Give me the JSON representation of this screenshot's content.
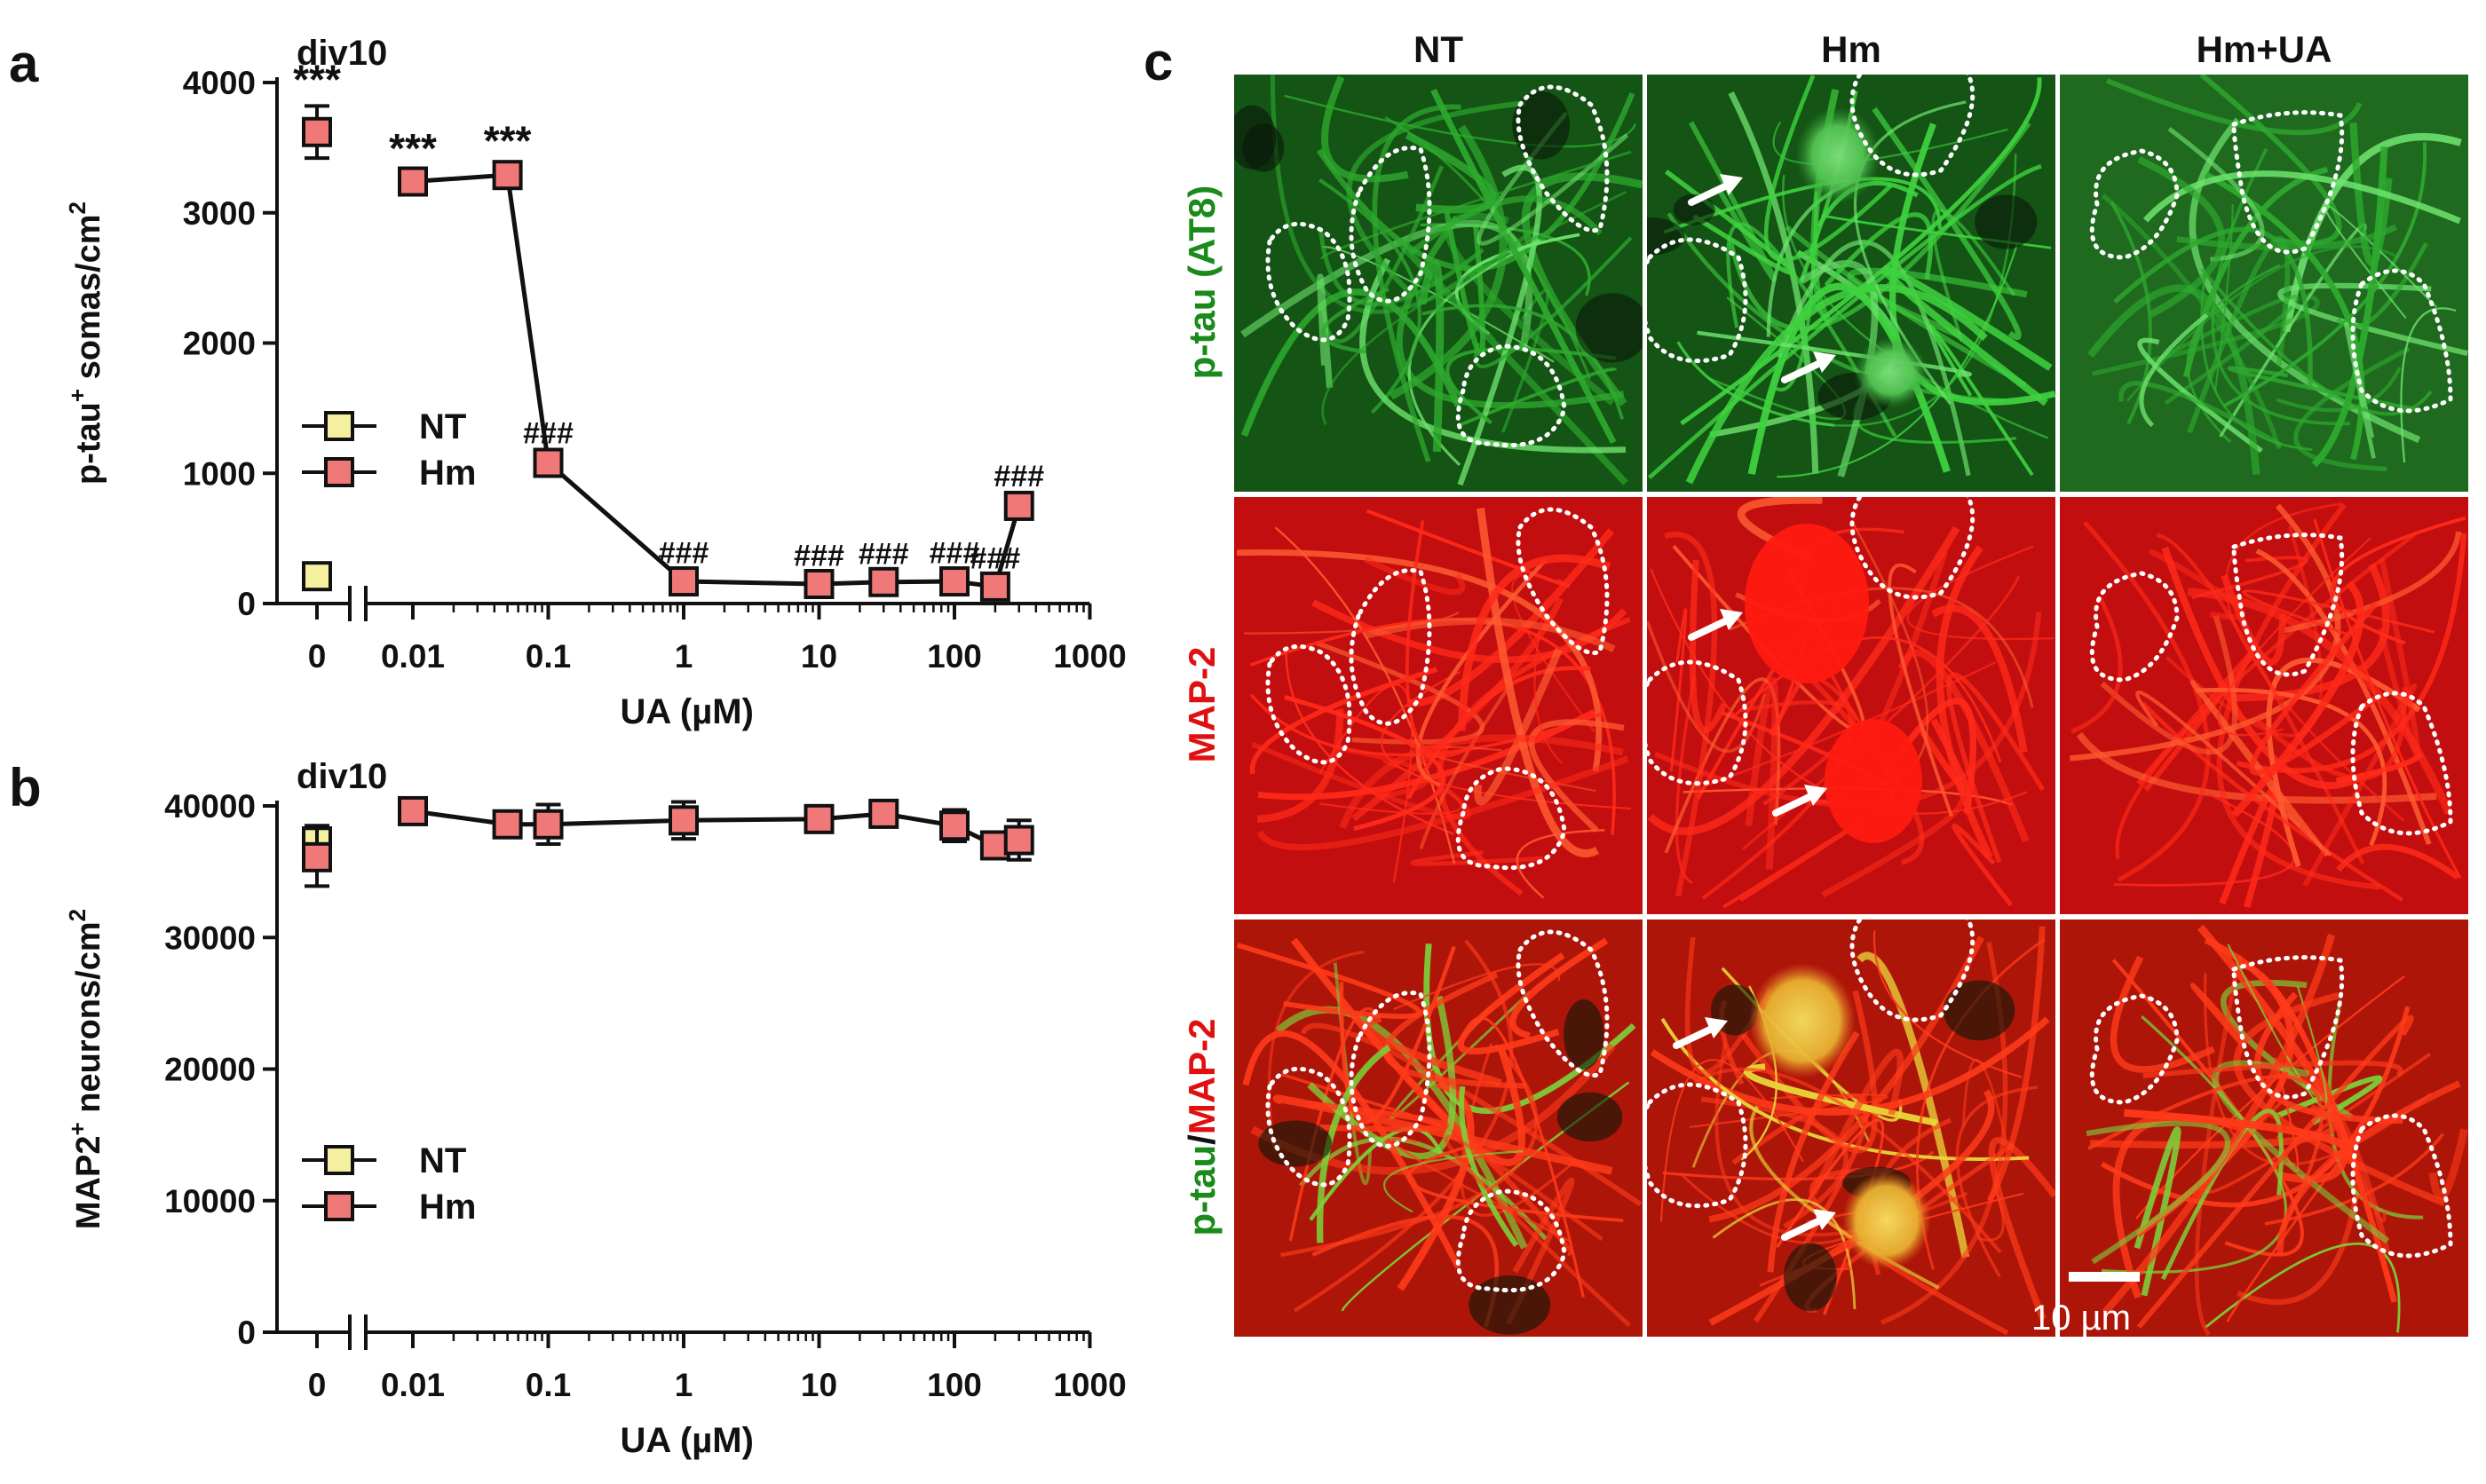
{
  "panel_labels": {
    "a": "a",
    "b": "b",
    "c": "c"
  },
  "chart_data": [
    {
      "type": "scatter",
      "panel": "a",
      "title": "div10",
      "ylabel_main": "p-tau",
      "ylabel_sup": "+",
      "ylabel_rest": " somas/cm",
      "ylabel_sup2": "2",
      "xlabel": "UA (µM)",
      "ylim": [
        0,
        4000
      ],
      "yticks": [
        0,
        1000,
        2000,
        3000,
        4000
      ],
      "ytick_labels": [
        "0",
        "1000",
        "2000",
        "3000",
        "4000"
      ],
      "xscale": "log (with break at 0)",
      "xticks": [
        0,
        0.01,
        0.1,
        1,
        10,
        100,
        1000
      ],
      "xtick_labels": [
        "0",
        "0.01",
        "0.1",
        "1",
        "10",
        "100",
        "1000"
      ],
      "legend": [
        {
          "name": "NT",
          "color": "#f5f0a0"
        },
        {
          "name": "Hm",
          "color": "#f07878"
        }
      ],
      "series": [
        {
          "name": "NT",
          "color": "#f5f0a0",
          "points": [
            {
              "x": 0,
              "y": 210,
              "err": 0
            }
          ]
        },
        {
          "name": "Hm",
          "color": "#f07878",
          "points": [
            {
              "x": 0,
              "y": 3620,
              "err": 200,
              "ann": "***"
            },
            {
              "x": 0.01,
              "y": 3240,
              "err": 50,
              "ann": "***"
            },
            {
              "x": 0.05,
              "y": 3290,
              "err": 60,
              "ann": "***"
            },
            {
              "x": 0.1,
              "y": 1080,
              "err": 40,
              "ann": "###"
            },
            {
              "x": 1,
              "y": 170,
              "err": 30,
              "ann": "###"
            },
            {
              "x": 10,
              "y": 150,
              "err": 30,
              "ann": "###"
            },
            {
              "x": 30,
              "y": 165,
              "err": 30,
              "ann": "###"
            },
            {
              "x": 100,
              "y": 170,
              "err": 30,
              "ann": "###"
            },
            {
              "x": 200,
              "y": 130,
              "err": 30,
              "ann": "###"
            },
            {
              "x": 300,
              "y": 750,
              "err": 40,
              "ann": "###"
            }
          ]
        }
      ]
    },
    {
      "type": "scatter",
      "panel": "b",
      "title": "div10",
      "ylabel_main": "MAP2",
      "ylabel_sup": "+",
      "ylabel_rest": " neurons/cm",
      "ylabel_sup2": "2",
      "xlabel": "UA (µM)",
      "ylim": [
        0,
        40000
      ],
      "yticks": [
        0,
        10000,
        20000,
        30000,
        40000
      ],
      "ytick_labels": [
        "0",
        "10000",
        "20000",
        "30000",
        "40000"
      ],
      "xscale": "log (with break at 0)",
      "xticks": [
        0,
        0.01,
        0.1,
        1,
        10,
        100,
        1000
      ],
      "xtick_labels": [
        "0",
        "0.01",
        "0.1",
        "1",
        "10",
        "100",
        "1000"
      ],
      "legend": [
        {
          "name": "NT",
          "color": "#f5f0a0"
        },
        {
          "name": "Hm",
          "color": "#f07878"
        }
      ],
      "series": [
        {
          "name": "NT",
          "color": "#f5f0a0",
          "points": [
            {
              "x": 0,
              "y": 37300,
              "err": 1200
            }
          ]
        },
        {
          "name": "Hm",
          "color": "#f07878",
          "points": [
            {
              "x": 0,
              "y": 36100,
              "err": 2200
            },
            {
              "x": 0.01,
              "y": 39600,
              "err": 800
            },
            {
              "x": 0.05,
              "y": 38600,
              "err": 900
            },
            {
              "x": 0.1,
              "y": 38600,
              "err": 1500
            },
            {
              "x": 1,
              "y": 38900,
              "err": 1400
            },
            {
              "x": 10,
              "y": 39000,
              "err": 700
            },
            {
              "x": 30,
              "y": 39400,
              "err": 800
            },
            {
              "x": 100,
              "y": 38500,
              "err": 1200
            },
            {
              "x": 200,
              "y": 37000,
              "err": 800
            },
            {
              "x": 300,
              "y": 37400,
              "err": 1500
            }
          ]
        }
      ]
    }
  ],
  "micrographs": {
    "columns": [
      "NT",
      "Hm",
      "Hm+UA"
    ],
    "rows": [
      {
        "parts": [
          {
            "text": "p-tau (AT8)",
            "color": "#1a8a1a"
          }
        ]
      },
      {
        "parts": [
          {
            "text": "MAP-2",
            "color": "#e01010"
          }
        ]
      },
      {
        "parts": [
          {
            "text": "p-tau",
            "color": "#1a8a1a"
          },
          {
            "text": "/",
            "color": "#111111"
          },
          {
            "text": "MAP-2",
            "color": "#e01010"
          }
        ]
      }
    ],
    "scale_bar": "10 µm"
  }
}
